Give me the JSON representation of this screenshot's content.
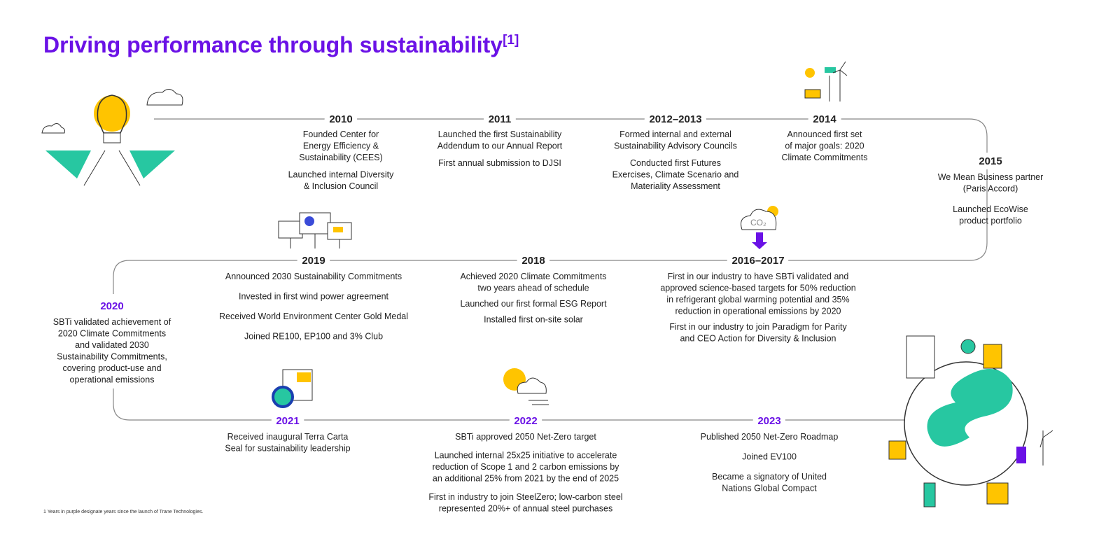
{
  "title": "Driving performance through sustainability",
  "title_note": "[1]",
  "milestones": [
    {
      "year": "2010",
      "color": "#222222",
      "items": [
        [
          "Founded Center for",
          "Energy Efficiency &",
          "Sustainability (CEES)"
        ],
        [
          "Launched internal Diversity",
          "& Inclusion Council"
        ]
      ]
    },
    {
      "year": "2011",
      "color": "#222222",
      "items": [
        [
          "Launched the first Sustainability",
          "Addendum to our Annual Report"
        ],
        [
          "First annual submission to DJSI"
        ]
      ]
    },
    {
      "year": "2012–2013",
      "color": "#222222",
      "items": [
        [
          "Formed internal and external",
          "Sustainability Advisory Councils"
        ],
        [
          "Conducted first Futures",
          "Exercises, Climate Scenario and",
          "Materiality Assessment"
        ]
      ]
    },
    {
      "year": "2014",
      "color": "#222222",
      "items": [
        [
          "Announced first set",
          "of major goals: 2020",
          "Climate Commitments"
        ]
      ]
    },
    {
      "year": "2015",
      "color": "#222222",
      "items": [
        [
          "We Mean Business partner",
          "(Paris Accord)"
        ],
        [
          "Launched EcoWise",
          "product portfolio"
        ]
      ]
    },
    {
      "year": "2016–2017",
      "color": "#222222",
      "items": [
        [
          "First in our industry to have SBTi validated and",
          "approved science-based targets for 50% reduction",
          "in refrigerant global warming potential and 35%",
          "reduction in operational emissions by 2020"
        ],
        [
          "First in our industry to join Paradigm for Parity",
          "and CEO Action for Diversity & Inclusion"
        ]
      ]
    },
    {
      "year": "2018",
      "color": "#222222",
      "items": [
        [
          "Achieved 2020 Climate Commitments",
          "two years ahead of schedule"
        ],
        [
          "Launched our first formal ESG Report"
        ],
        [
          "Installed first on-site solar"
        ]
      ]
    },
    {
      "year": "2019",
      "color": "#222222",
      "items": [
        [
          "Announced 2030 Sustainability Commitments"
        ],
        [
          "Invested in first wind power agreement"
        ],
        [
          "Received World Environment Center Gold Medal"
        ],
        [
          "Joined RE100, EP100 and 3% Club"
        ]
      ]
    },
    {
      "year": "2020",
      "color": "#6a11e6",
      "items": [
        [
          "SBTi validated achievement of",
          "2020 Climate Commitments",
          "and validated 2030",
          "Sustainability Commitments,",
          "covering product-use and",
          "operational emissions"
        ]
      ]
    },
    {
      "year": "2021",
      "color": "#6a11e6",
      "items": [
        [
          "Received inaugural Terra Carta",
          "Seal for sustainability leadership"
        ]
      ]
    },
    {
      "year": "2022",
      "color": "#6a11e6",
      "items": [
        [
          "SBTi approved 2050 Net-Zero target"
        ],
        [
          "Launched internal 25x25 initiative to accelerate",
          "reduction of Scope 1 and 2 carbon emissions by",
          "an additional 25% from 2021 by the end of 2025"
        ],
        [
          "First in industry to join SteelZero; low-carbon steel",
          "represented 20%+ of annual steel purchases"
        ]
      ]
    },
    {
      "year": "2023",
      "color": "#6a11e6",
      "items": [
        [
          "Published 2050 Net-Zero Roadmap"
        ],
        [
          "Joined EV100"
        ],
        [
          "Became a signatory of United",
          "Nations Global Compact"
        ]
      ]
    }
  ],
  "footnote": "1 Years in purple designate years since the launch of Trane Technologies."
}
